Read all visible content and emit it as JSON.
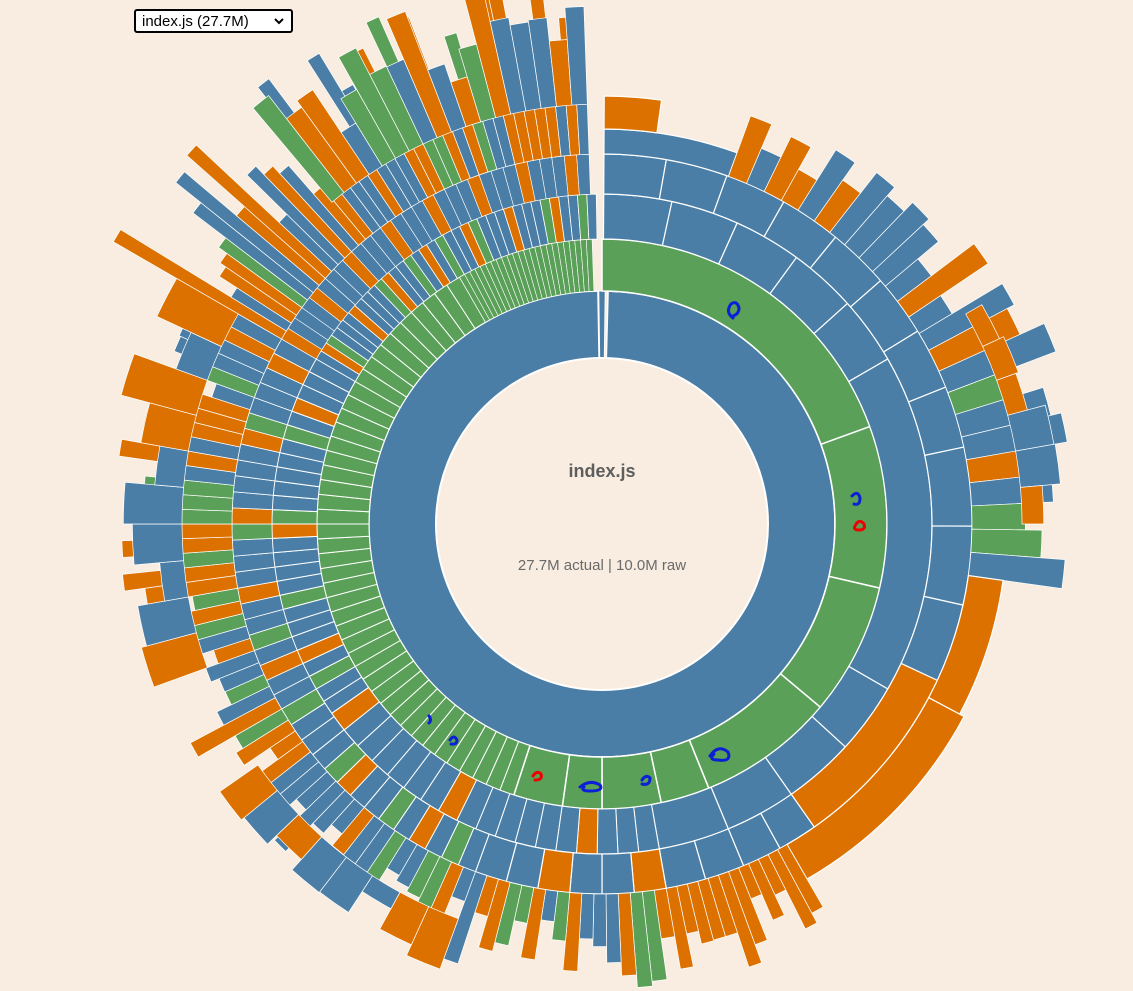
{
  "selector": {
    "selected_label": "index.js (27.7M)"
  },
  "center": {
    "title": "index.js",
    "subtitle": "27.7M actual | 10.0M raw"
  },
  "colors": {
    "background": "#f8ede0",
    "module_blue": "#4a7ea6",
    "source_green": "#5aa058",
    "dependency_orange": "#dd7100",
    "divider": "#ffffff"
  },
  "legend_meaning": null
}
